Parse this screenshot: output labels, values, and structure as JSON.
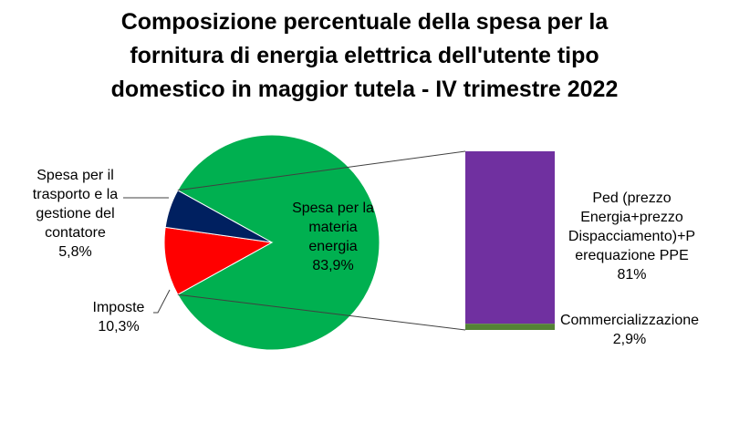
{
  "chart_data": {
    "type": "pie",
    "title_lines": [
      "Composizione percentuale della spesa per la",
      "fornitura di energia elettrica dell'utente tipo",
      "domestico in maggior tutela - IV trimestre 2022"
    ],
    "slices": [
      {
        "label_lines": [
          "Spesa per la",
          "materia",
          "energia"
        ],
        "value_text": "83,9%",
        "value": 83.9,
        "color": "#00b050"
      },
      {
        "label_lines": [
          "Imposte"
        ],
        "value_text": "10,3%",
        "value": 10.3,
        "color": "#ff0000"
      },
      {
        "label_lines": [
          "Spesa per il",
          "trasporto e la",
          "gestione del",
          "contatore"
        ],
        "value_text": "5,8%",
        "value": 5.8,
        "color": "#002060"
      }
    ],
    "breakdown": {
      "of_slice": "Spesa per la materia energia",
      "segments": [
        {
          "label_lines": [
            "Ped (prezzo",
            "Energia+prezzo",
            "Dispacciamento)+P",
            "erequazione PPE"
          ],
          "value_text": "81%",
          "value": 81,
          "color": "#7030a0"
        },
        {
          "label_lines": [
            "Commercializzazione"
          ],
          "value_text": "2,9%",
          "value": 2.9,
          "color": "#548235"
        }
      ]
    }
  }
}
